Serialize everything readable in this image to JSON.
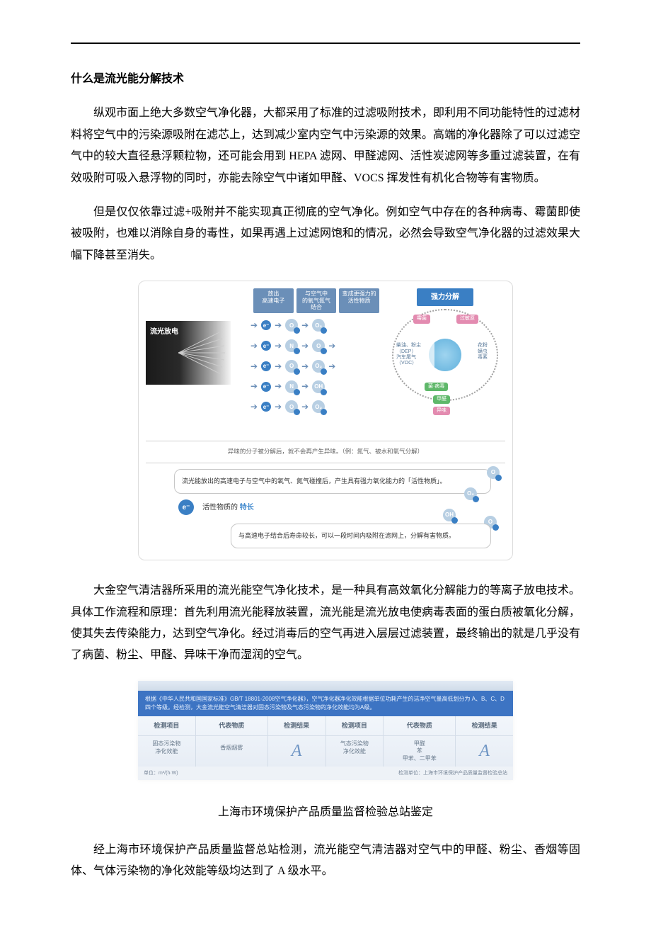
{
  "doc": {
    "title": "什么是流光能分解技术",
    "p1": "纵观市面上绝大多数空气净化器，大都采用了标准的过滤吸附技术，即利用不同功能特性的过滤材料将空气中的污染源吸附在滤芯上，达到减少室内空气中污染源的效果。高端的净化器除了可以过滤空气中的较大直径悬浮颗粒物，还可能会用到 HEPA 滤网、甲醛滤网、活性炭滤网等多重过滤装置，在有效吸附可吸入悬浮物的同时，亦能去除空气中诸如甲醛、VOCS 挥发性有机化合物等有害物质。",
    "p2": "但是仅仅依靠过滤+吸附并不能实现真正彻底的空气净化。例如空气中存在的各种病毒、霉菌即使被吸附，也难以消除自身的毒性，如果再遇上过滤网饱和的情况，必然会导致空气净化器的过滤效果大幅下降甚至消失。",
    "p3": "大金空气清洁器所采用的流光能空气净化技术，是一种具有高效氧化分解能力的等离子放电技术。具体工作流程和原理：首先利用流光能释放装置，流光能是流光放电使病毒表面的蛋白质被氧化分解，使其失去传染能力，达到空气净化。经过消毒后的空气再进入层层过滤装置，最终输出的就是几乎没有了病菌、粉尘、甲醛、异味干净而湿润的空气。",
    "caption2": "上海市环境保护产品质量监督检验总站鉴定",
    "p4": "经上海市环境保护产品质量监督总站检测，流光能空气清洁器对空气中的甲醛、粉尘、香烟等固体、气体污染物的净化效能等级均达到了 A 级水平。"
  },
  "fig1": {
    "emit_label": "流光放电",
    "step1": "放出\n高速电子",
    "step2": "与空气中\n的氧气氮气\n结合",
    "step3": "变成更强力的\n活性物质",
    "right_title": "强力分解",
    "node_left": "柴油、粉尘（DEP）\n汽车尾气（VOC）",
    "node_right": "花粉\n螨虫\n毒素",
    "node_tl": "霉菌",
    "node_tr": "过敏原",
    "node_bl": "菌·病毒",
    "node_b": "甲醛",
    "node_bb": "异味",
    "note1": "异味的分子被分解后，就不会再产生异味。（例：氮气、被水和氧气分解）",
    "bubble1": "流光能放出的高速电子与空气中的氧气、氮气碰撞后，产生具有强力氧化能力的「活性物质」。",
    "feature_label_a": "活性物质的",
    "feature_label_b": "特长",
    "bubble2": "与高速电子结合后寿命较长，可以一段时间内吸附在滤网上，分解有害物质。"
  },
  "fig2": {
    "banner": "根据《中华人民共和国国家标准》GB/T 18801-2008空气净化器》，空气净化器净化效能根据单位功耗产生的洁净空气量高低划分为 A、B、C、D 四个等级。经检测，大金流光能空气清洁器对固态污染物及气态污染物的净化效能均为A级。",
    "headers": [
      "检测项目",
      "代表物质",
      "检测结果",
      "检测项目",
      "代表物质",
      "检测结果"
    ],
    "row": [
      "固态污染物\n净化效能",
      "香烟烟雾",
      "A",
      "气态污染物\n净化效能",
      "甲醛\n苯\n甲苯、二甲苯",
      "A"
    ],
    "foot_left": "单位：m³/(h·W)",
    "foot_right": "检测单位：上海市环境保护产品质量监督检验总站"
  }
}
